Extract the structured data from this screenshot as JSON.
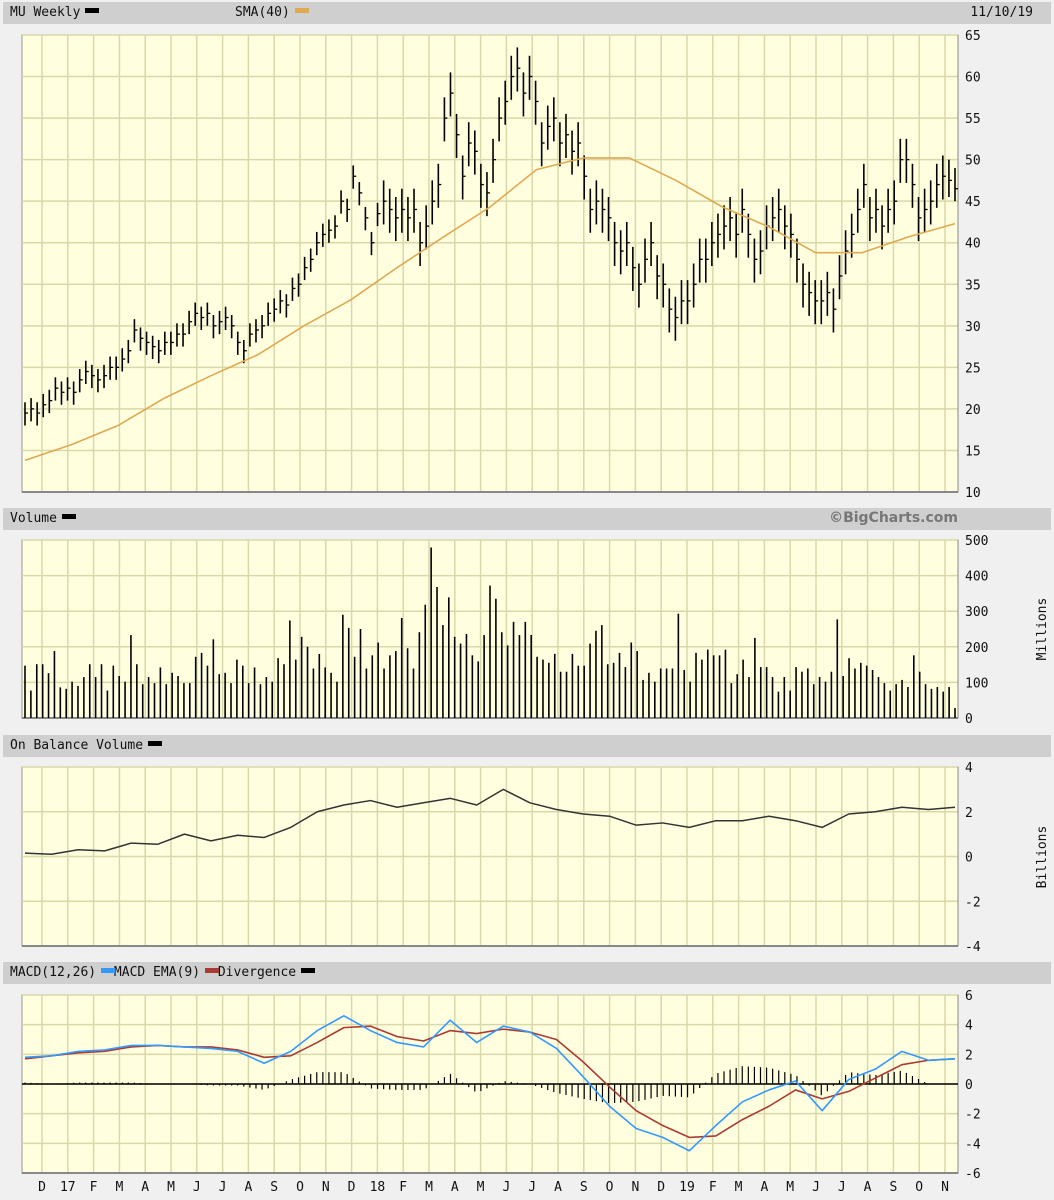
{
  "header": {
    "title": "MU Weekly",
    "sma_label": "SMA(40)",
    "date": "11/10/19"
  },
  "volume_panel": {
    "title": "Volume",
    "credit": "©BigCharts.com",
    "unit": "Millions"
  },
  "obv_panel": {
    "title": "On Balance Volume",
    "unit": "Billions"
  },
  "macd_panel": {
    "macd_label": "MACD(12,26)",
    "ema_label": "MACD EMA(9)",
    "div_label": "Divergence"
  },
  "colors": {
    "price": "#000000",
    "sma": "#e0a850",
    "volume": "#000000",
    "obv": "#333333",
    "macd": "#3399ff",
    "ema": "#aa3b33",
    "divergence": "#000000",
    "plot_bg": "#ffffe0",
    "grid": "#d8d8a8",
    "header_bg": "#cfcfcf"
  },
  "chart_data": [
    {
      "type": "ohlc",
      "title": "MU Weekly",
      "frequency": "weekly",
      "x_tick_labels": [
        "D",
        "17",
        "F",
        "M",
        "A",
        "M",
        "J",
        "J",
        "A",
        "S",
        "O",
        "N",
        "D",
        "18",
        "F",
        "M",
        "A",
        "M",
        "J",
        "J",
        "A",
        "S",
        "O",
        "N",
        "D",
        "19",
        "F",
        "M",
        "A",
        "M",
        "J",
        "J",
        "A",
        "S",
        "O",
        "N"
      ],
      "y_ticks": [
        65,
        60,
        55,
        50,
        45,
        40,
        35,
        30,
        25,
        20,
        15,
        10
      ],
      "ylim": [
        10,
        65
      ],
      "grid": true,
      "close": [
        19.5,
        20,
        19.5,
        20.5,
        21,
        22.5,
        22,
        22.5,
        22,
        23.5,
        24.5,
        24,
        23.5,
        24,
        25,
        25,
        26,
        27,
        29.5,
        28.5,
        28,
        27.5,
        27,
        28,
        28,
        29,
        29,
        30.5,
        31.5,
        31,
        31.5,
        30,
        30.5,
        31,
        30,
        28,
        27,
        29,
        29.5,
        30,
        31.5,
        32,
        33,
        32.5,
        34.5,
        35,
        37,
        38,
        40,
        41,
        41.5,
        42,
        45,
        44,
        48,
        46,
        43,
        40,
        43.5,
        45,
        44,
        43,
        44,
        43,
        44,
        40,
        42,
        45,
        47,
        55,
        58,
        53,
        48,
        52,
        51,
        47,
        46,
        50,
        55,
        57,
        60,
        61,
        58,
        60,
        57,
        52,
        54,
        55,
        52,
        53,
        51,
        52,
        48,
        44,
        45,
        44,
        43,
        40,
        39,
        40,
        37,
        35,
        38,
        40,
        36,
        35,
        32,
        31,
        33,
        33,
        35,
        38,
        38,
        40,
        41,
        42,
        43,
        41,
        44,
        41,
        38,
        39,
        42,
        43,
        44,
        42,
        41,
        38,
        35,
        34,
        33,
        33,
        34,
        32,
        36,
        39,
        41,
        44,
        47,
        43,
        44,
        42,
        44,
        45,
        50,
        50,
        47,
        43,
        44,
        45,
        47,
        48,
        47.5,
        46.5
      ],
      "high": [
        20.8,
        21.3,
        20.8,
        21.8,
        22.3,
        23.8,
        23.3,
        23.8,
        23.3,
        24.8,
        25.8,
        25.3,
        24.8,
        25.3,
        26.3,
        26.3,
        27.3,
        28.3,
        30.8,
        29.8,
        29.3,
        28.8,
        28.3,
        29.3,
        29.3,
        30.3,
        30.3,
        31.8,
        32.8,
        32.3,
        32.8,
        31.3,
        31.8,
        32.3,
        31.3,
        29.3,
        28.3,
        30.3,
        30.8,
        31.3,
        32.8,
        33.3,
        34.3,
        33.8,
        35.8,
        36.3,
        38.3,
        39.3,
        41.3,
        42.3,
        42.8,
        43.3,
        46.3,
        45.3,
        49.3,
        47.3,
        44.3,
        41.3,
        44.8,
        47.5,
        46.5,
        45.5,
        46.5,
        45.5,
        46.5,
        42.5,
        44.5,
        47.5,
        49.5,
        57.5,
        60.5,
        55.5,
        50.5,
        54.5,
        53.5,
        49.5,
        48.5,
        52.5,
        57.5,
        59.5,
        62.5,
        63.5,
        60.5,
        62.5,
        59.5,
        54.5,
        56.5,
        57.5,
        54.5,
        55.5,
        53.5,
        54.5,
        50.5,
        46.5,
        47.5,
        46.5,
        45.5,
        42.5,
        41.5,
        42.5,
        39.5,
        37.5,
        40.5,
        42.5,
        38.5,
        37.5,
        34.5,
        33.5,
        35.5,
        35.5,
        37.5,
        40.5,
        40.5,
        42.5,
        43.5,
        44.5,
        45.5,
        43.5,
        46.5,
        43.5,
        40.5,
        41.5,
        44.5,
        45.5,
        46.5,
        44.5,
        43.5,
        40.5,
        37.5,
        36.5,
        35.5,
        35.5,
        36.5,
        34.5,
        38.5,
        41.5,
        43.5,
        46.5,
        49.5,
        45.5,
        46.5,
        44.5,
        46.5,
        47.5,
        52.5,
        52.5,
        49.5,
        45.5,
        46.5,
        47.5,
        49.5,
        50.5,
        50,
        49
      ],
      "low": [
        18,
        18.5,
        18,
        19,
        19.5,
        21,
        20.5,
        21,
        20.5,
        22,
        23,
        22.5,
        22,
        22.5,
        23.5,
        23.5,
        24.5,
        25.5,
        28,
        27,
        26.5,
        26,
        25.5,
        26.5,
        26.5,
        27.5,
        27.5,
        29,
        30,
        29.5,
        30,
        28.5,
        29,
        29.5,
        28.5,
        26.5,
        25.5,
        27.5,
        28,
        28.5,
        30,
        30.5,
        31.5,
        31,
        33,
        33.5,
        35.5,
        36.5,
        38.5,
        39.5,
        40,
        40.5,
        43.5,
        42.5,
        46.5,
        44.5,
        41.5,
        38.5,
        42,
        42.2,
        41.2,
        40.2,
        41.2,
        40.2,
        41.2,
        37.2,
        39.2,
        42.2,
        44.2,
        52.2,
        55.2,
        50.2,
        45.2,
        49.2,
        48.2,
        44.2,
        43.2,
        47.2,
        52.2,
        54.2,
        57.2,
        58.2,
        55.2,
        57.2,
        54.2,
        49.2,
        51.2,
        52.2,
        49.2,
        50.2,
        48.2,
        49.2,
        45.2,
        41.2,
        42.2,
        41.2,
        40.2,
        37.2,
        36.2,
        37.2,
        34.2,
        32.2,
        35.2,
        37.2,
        33.2,
        32.2,
        29.2,
        28.2,
        30.2,
        30.2,
        32.2,
        35.2,
        35.2,
        37.2,
        38.2,
        39.2,
        40.2,
        38.2,
        41.2,
        38.2,
        35.2,
        36.2,
        39.2,
        40.2,
        41.2,
        39.2,
        38.2,
        35.2,
        32.2,
        31.2,
        30.2,
        30.2,
        31.2,
        29.2,
        33.2,
        36.2,
        38.2,
        41.2,
        44.2,
        40.2,
        41.2,
        39.2,
        41.2,
        42.2,
        47.2,
        47.2,
        44.2,
        40.2,
        41.2,
        42.2,
        44.2,
        45.2,
        45.5,
        45
      ],
      "sma": {
        "name": "SMA(40)",
        "values": [
          13.8,
          15.7,
          18,
          21.3,
          24,
          26.5,
          30,
          33.1,
          37,
          40.7,
          44.3,
          48.8,
          50.2,
          50.2,
          47.5,
          44.3,
          41.9,
          38.8,
          38.8,
          40.7,
          42.3
        ]
      }
    },
    {
      "type": "bar",
      "title": "Volume",
      "ylabel": "Millions",
      "y_ticks": [
        500,
        400,
        300,
        200,
        100,
        0
      ],
      "ylim": [
        0,
        500
      ],
      "values": [
        147,
        77,
        151,
        151,
        126,
        188,
        86,
        82,
        102,
        90,
        115,
        151,
        115,
        151,
        77,
        147,
        118,
        102,
        233,
        151,
        95,
        115,
        98,
        142,
        95,
        127,
        118,
        98,
        98,
        172,
        183,
        147,
        221,
        123,
        127,
        98,
        164,
        147,
        98,
        142,
        95,
        115,
        102,
        168,
        151,
        274,
        164,
        228,
        200,
        139,
        180,
        142,
        127,
        102,
        290,
        253,
        172,
        250,
        139,
        176,
        212,
        139,
        176,
        188,
        281,
        196,
        139,
        241,
        318,
        479,
        368,
        261,
        339,
        228,
        209,
        236,
        176,
        159,
        233,
        372,
        335,
        241,
        204,
        270,
        233,
        270,
        233,
        172,
        164,
        155,
        180,
        130,
        130,
        180,
        147,
        147,
        209,
        245,
        261,
        151,
        155,
        183,
        143,
        212,
        188,
        107,
        127,
        102,
        139,
        139,
        139,
        293,
        135,
        102,
        183,
        164,
        192,
        176,
        176,
        192,
        98,
        123,
        164,
        115,
        225,
        143,
        143,
        115,
        74,
        115,
        77,
        143,
        130,
        139,
        95,
        115,
        102,
        130,
        277,
        118,
        168,
        139,
        155,
        147,
        135,
        115,
        98,
        77,
        95,
        107,
        87,
        176,
        130,
        95,
        82,
        87,
        74,
        87,
        28
      ]
    },
    {
      "type": "line",
      "title": "On Balance Volume",
      "ylabel": "Billions",
      "y_ticks": [
        4,
        2,
        0,
        -2,
        -4
      ],
      "ylim": [
        -4,
        4
      ],
      "values": [
        0.15,
        0.1,
        0.3,
        0.25,
        0.6,
        0.55,
        1.0,
        0.7,
        0.95,
        0.85,
        1.3,
        2.0,
        2.3,
        2.5,
        2.2,
        2.4,
        2.6,
        2.3,
        3.0,
        2.4,
        2.1,
        1.9,
        1.8,
        1.4,
        1.5,
        1.3,
        1.6,
        1.6,
        1.8,
        1.6,
        1.3,
        1.9,
        2.0,
        2.2,
        2.1,
        2.2
      ]
    },
    {
      "type": "line",
      "title": "MACD(12,26)",
      "y_ticks": [
        6,
        4,
        2,
        0,
        -2,
        -4,
        -6
      ],
      "ylim": [
        -6,
        6
      ],
      "series": [
        {
          "name": "MACD(12,26)",
          "values": [
            1.8,
            1.9,
            2.2,
            2.3,
            2.6,
            2.6,
            2.5,
            2.4,
            2.2,
            1.4,
            2.2,
            3.6,
            4.6,
            3.6,
            2.8,
            2.5,
            4.3,
            2.8,
            3.9,
            3.5,
            2.4,
            0.5,
            -1.5,
            -3.0,
            -3.6,
            -4.5,
            -2.8,
            -1.2,
            -0.4,
            0.2,
            -1.8,
            0.3,
            1.0,
            2.2,
            1.6,
            1.7
          ]
        },
        {
          "name": "MACD EMA(9)",
          "values": [
            1.7,
            1.9,
            2.1,
            2.2,
            2.5,
            2.6,
            2.5,
            2.5,
            2.3,
            1.8,
            1.9,
            2.8,
            3.8,
            3.9,
            3.2,
            2.9,
            3.6,
            3.4,
            3.7,
            3.5,
            3.0,
            1.5,
            -0.2,
            -1.8,
            -2.8,
            -3.6,
            -3.5,
            -2.4,
            -1.5,
            -0.4,
            -1.0,
            -0.5,
            0.4,
            1.3,
            1.6,
            1.7
          ]
        },
        {
          "name": "Divergence",
          "type": "bar",
          "values": [
            0.1,
            0,
            0.1,
            0.1,
            0.1,
            0,
            0,
            -0.1,
            -0.1,
            -0.4,
            0.3,
            0.8,
            0.8,
            -0.3,
            -0.4,
            -0.4,
            0.7,
            -0.6,
            0.2,
            0,
            -0.6,
            -1.0,
            -1.3,
            -1.2,
            -0.8,
            -0.9,
            0.7,
            1.2,
            1.1,
            0.6,
            -0.8,
            0.8,
            0.6,
            0.9,
            0,
            0
          ]
        }
      ]
    }
  ]
}
